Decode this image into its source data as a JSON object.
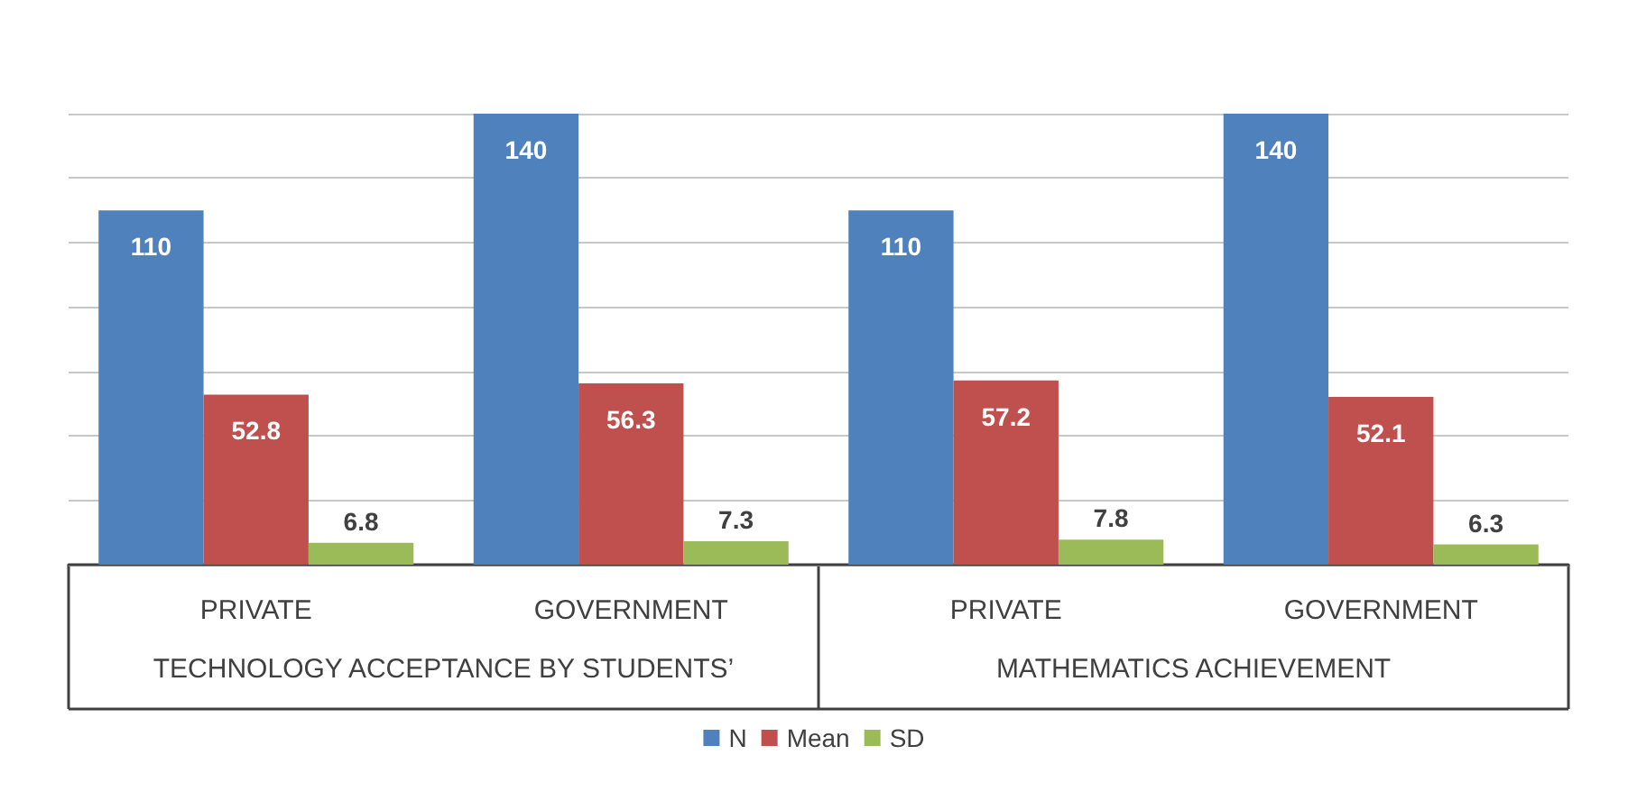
{
  "chart_data": {
    "type": "bar",
    "categories": [
      "PRIVATE",
      "GOVERNMENT",
      "PRIVATE",
      "GOVERNMENT"
    ],
    "series": [
      {
        "name": "N",
        "color": "#4f81bd",
        "values": [
          110,
          140,
          110,
          140
        ]
      },
      {
        "name": "Mean",
        "color": "#c0504d",
        "values": [
          52.8,
          56.3,
          57.2,
          52.1
        ]
      },
      {
        "name": "SD",
        "color": "#9bbb59",
        "values": [
          6.8,
          7.3,
          7.8,
          6.3
        ]
      }
    ],
    "annotations": [
      "TECHNOLOGY ACCEPTANCE BY STUDENTS’",
      "MATHEMATICS ACHIEVEMENT"
    ],
    "ylim": [
      0,
      140
    ],
    "yticks": [
      {
        "value": 0,
        "label": null
      },
      {
        "value": 20,
        "label": null
      },
      {
        "value": 40,
        "label": null
      },
      {
        "value": 60,
        "label": null
      },
      {
        "value": 80,
        "label": null
      },
      {
        "value": 100,
        "label": null
      },
      {
        "value": 120,
        "label": null
      },
      {
        "value": 140,
        "label": null
      }
    ],
    "tick_labels": "x",
    "grid": "y",
    "data_labels": true,
    "legend": "bottom"
  }
}
